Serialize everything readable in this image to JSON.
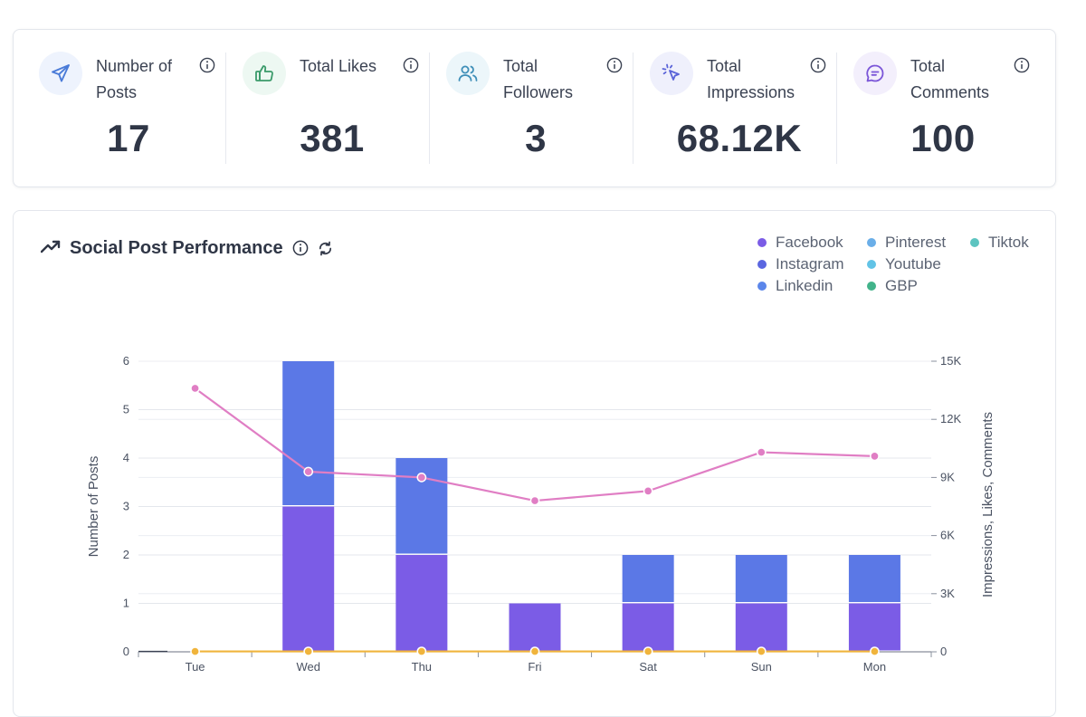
{
  "stats": [
    {
      "label": "Number of Posts",
      "value": "17",
      "icon": "send-icon",
      "icon_color": "#4a7bd8",
      "icon_bg": "#eef3fd"
    },
    {
      "label": "Total Likes",
      "value": "381",
      "icon": "thumbs-up-icon",
      "icon_color": "#3a9a6a",
      "icon_bg": "#edf8f2"
    },
    {
      "label": "Total Followers",
      "value": "3",
      "icon": "users-icon",
      "icon_color": "#3f8fb8",
      "icon_bg": "#ecf6fa"
    },
    {
      "label": "Total Impressions",
      "value": "68.12K",
      "icon": "pointer-click-icon",
      "icon_color": "#5a63d8",
      "icon_bg": "#eff0fc"
    },
    {
      "label": "Total Comments",
      "value": "100",
      "icon": "message-icon",
      "icon_color": "#7a55d8",
      "icon_bg": "#f3effc"
    }
  ],
  "chart_card": {
    "title": "Social Post Performance",
    "title_icon": "trending-up-icon",
    "info_icon": "info-icon",
    "refresh_icon": "refresh-icon"
  },
  "legend": [
    {
      "name": "Facebook",
      "color": "#7b5ce6"
    },
    {
      "name": "Instagram",
      "color": "#5b66e0"
    },
    {
      "name": "Linkedin",
      "color": "#5b86ea"
    },
    {
      "name": "Pinterest",
      "color": "#6aaee8"
    },
    {
      "name": "Youtube",
      "color": "#62c3e6"
    },
    {
      "name": "GBP",
      "color": "#42b38a"
    },
    {
      "name": "Tiktok",
      "color": "#5dc4c0"
    }
  ],
  "chart_data": {
    "type": "bar",
    "categories": [
      "Tue",
      "Wed",
      "Thu",
      "Fri",
      "Sat",
      "Sun",
      "Mon"
    ],
    "series": [
      {
        "name": "Facebook",
        "type": "bar",
        "axis": "left",
        "color": "#7b5ce6",
        "values": [
          0,
          3,
          2,
          1,
          1,
          1,
          1
        ]
      },
      {
        "name": "Linkedin",
        "type": "bar",
        "axis": "left",
        "color": "#5b78e6",
        "values": [
          0,
          3,
          2,
          0,
          1,
          1,
          1
        ]
      },
      {
        "type": "line",
        "axis": "right",
        "color": "#e07ec4",
        "values": [
          13600,
          9300,
          9000,
          7800,
          8300,
          10300,
          10100
        ]
      },
      {
        "type": "line",
        "axis": "right",
        "color": "#f0b43c",
        "values": [
          20,
          20,
          20,
          20,
          20,
          20,
          20
        ]
      }
    ],
    "ylabel": "Number of Posts",
    "y2label": "Impressions, Likes, Comments",
    "ylim": [
      0,
      6
    ],
    "yticks": [
      "0",
      "1",
      "2",
      "3",
      "4",
      "5",
      "6"
    ],
    "y2lim": [
      0,
      15000
    ],
    "y2ticks": [
      "0",
      "3K",
      "6K",
      "9K",
      "12K",
      "15K"
    ],
    "grid": true
  }
}
